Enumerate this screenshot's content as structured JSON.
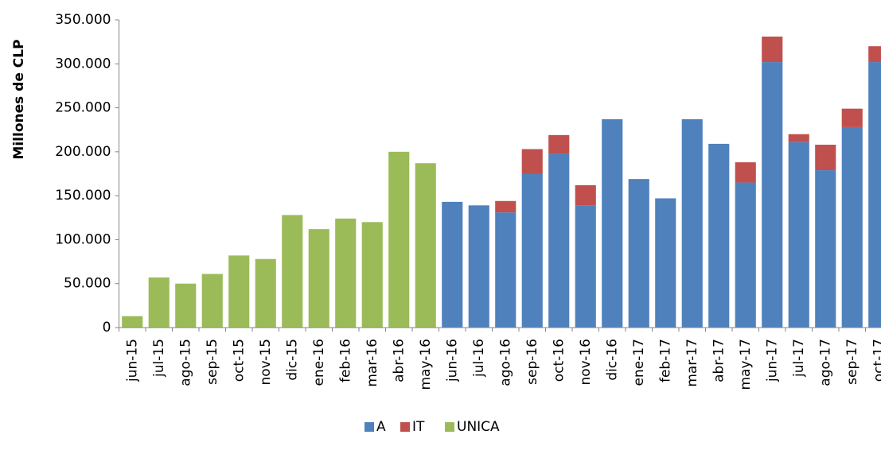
{
  "chart_data": {
    "type": "stacked_bar",
    "y_label": "Millones de CLP",
    "categories": [
      "jun-15",
      "jul-15",
      "ago-15",
      "sep-15",
      "oct-15",
      "nov-15",
      "dic-15",
      "ene-16",
      "feb-16",
      "mar-16",
      "abr-16",
      "may-16",
      "jun-16",
      "jul-16",
      "ago-16",
      "sep-16",
      "oct-16",
      "nov-16",
      "dic-16",
      "ene-17",
      "feb-17",
      "mar-17",
      "abr-17",
      "may-17",
      "jun-17",
      "jul-17",
      "ago-17",
      "sep-17",
      "oct-17"
    ],
    "series": [
      {
        "name": "A",
        "color": "#4f81bd",
        "values": [
          null,
          null,
          null,
          null,
          null,
          null,
          null,
          null,
          null,
          null,
          null,
          null,
          143000,
          139000,
          131000,
          175000,
          198000,
          139000,
          237000,
          169000,
          147000,
          237000,
          209000,
          165000,
          302000,
          211000,
          179000,
          228000,
          302000
        ]
      },
      {
        "name": "IT",
        "color": "#c0504d",
        "values": [
          null,
          null,
          null,
          null,
          null,
          null,
          null,
          null,
          null,
          null,
          null,
          null,
          null,
          null,
          13000,
          28000,
          21000,
          23000,
          null,
          null,
          null,
          null,
          null,
          23000,
          29000,
          9000,
          29000,
          21000,
          18000
        ]
      },
      {
        "name": "UNICA",
        "color": "#9bbb59",
        "values": [
          13000,
          57000,
          50000,
          61000,
          82000,
          78000,
          128000,
          112000,
          124000,
          120000,
          200000,
          187000,
          null,
          null,
          null,
          null,
          null,
          null,
          null,
          null,
          null,
          null,
          null,
          null,
          null,
          null,
          null,
          null,
          null
        ]
      }
    ],
    "ylim": [
      0,
      350000
    ],
    "yticks": [
      0,
      {
        "value": 50000,
        "label": "50.000"
      },
      {
        "value": 100000,
        "label": "100.000"
      },
      {
        "value": 150000,
        "label": "150.000"
      },
      {
        "value": 200000,
        "label": "200.000"
      },
      {
        "value": 250000,
        "label": "250.000"
      },
      {
        "value": 300000,
        "label": "300.000"
      },
      {
        "value": 350000,
        "label": "350.000"
      }
    ],
    "grid": false,
    "legend": "bottom"
  }
}
